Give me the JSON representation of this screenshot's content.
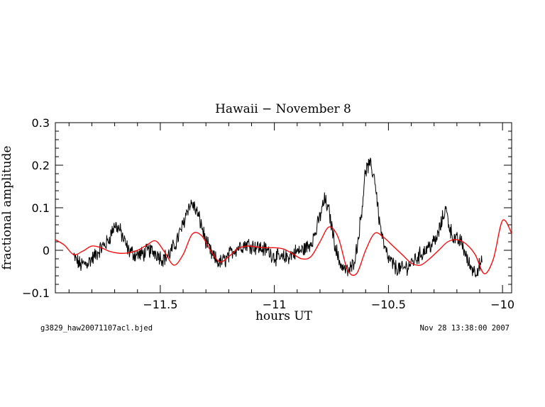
{
  "chart_data": {
    "type": "line",
    "title": "Hawaii − November 8",
    "xlabel": "hours UT",
    "ylabel": "fractional amplitude",
    "xlim": [
      -11.96,
      -9.96
    ],
    "ylim": [
      -0.1,
      0.3
    ],
    "x_ticks": [
      -11.5,
      -11,
      -10.5,
      -10
    ],
    "x_tick_labels": [
      "−11.5",
      "−11",
      "−10.5",
      "−10"
    ],
    "y_ticks": [
      -0.1,
      0,
      0.1,
      0.2,
      0.3
    ],
    "y_tick_labels": [
      "−0.1",
      "0",
      "0.1",
      "0.2",
      "0.3"
    ],
    "grid": false,
    "series": [
      {
        "color": "#000000",
        "style": "noisy-line",
        "x": [
          -11.88,
          -11.85,
          -11.82,
          -11.79,
          -11.76,
          -11.73,
          -11.7,
          -11.68,
          -11.66,
          -11.64,
          -11.61,
          -11.58,
          -11.55,
          -11.52,
          -11.49,
          -11.46,
          -11.43,
          -11.4,
          -11.38,
          -11.36,
          -11.34,
          -11.32,
          -11.3,
          -11.27,
          -11.24,
          -11.21,
          -11.18,
          -11.15,
          -11.12,
          -11.09,
          -11.06,
          -11.03,
          -11.0,
          -10.97,
          -10.94,
          -10.91,
          -10.88,
          -10.85,
          -10.82,
          -10.8,
          -10.78,
          -10.76,
          -10.74,
          -10.72,
          -10.7,
          -10.68,
          -10.66,
          -10.64,
          -10.62,
          -10.6,
          -10.58,
          -10.56,
          -10.54,
          -10.52,
          -10.5,
          -10.47,
          -10.44,
          -10.41,
          -10.38,
          -10.35,
          -10.32,
          -10.29,
          -10.27,
          -10.25,
          -10.23,
          -10.21,
          -10.18,
          -10.15,
          -10.12,
          -10.09
        ],
        "y": [
          -0.015,
          -0.035,
          -0.03,
          -0.015,
          0.005,
          0.02,
          0.06,
          0.05,
          0.025,
          0.0,
          -0.01,
          -0.01,
          0.0,
          -0.005,
          -0.02,
          -0.01,
          0.02,
          0.06,
          0.1,
          0.11,
          0.09,
          0.06,
          0.02,
          -0.015,
          -0.03,
          -0.02,
          0.0,
          0.01,
          0.015,
          0.01,
          0.005,
          0.0,
          -0.015,
          -0.02,
          -0.015,
          -0.005,
          0.0,
          0.01,
          0.04,
          0.08,
          0.12,
          0.09,
          0.03,
          -0.02,
          -0.04,
          -0.05,
          -0.04,
          0.0,
          0.08,
          0.19,
          0.2,
          0.17,
          0.07,
          0.01,
          -0.02,
          -0.04,
          -0.045,
          -0.035,
          -0.02,
          -0.005,
          0.01,
          0.025,
          0.06,
          0.1,
          0.05,
          0.025,
          0.02,
          -0.03,
          -0.05,
          -0.03
        ],
        "noise": 0.015
      },
      {
        "color": "#ff0000",
        "style": "smooth-line",
        "x": [
          -11.96,
          -11.92,
          -11.88,
          -11.84,
          -11.8,
          -11.76,
          -11.72,
          -11.68,
          -11.64,
          -11.6,
          -11.56,
          -11.52,
          -11.48,
          -11.44,
          -11.4,
          -11.36,
          -11.32,
          -11.28,
          -11.24,
          -11.2,
          -11.16,
          -11.12,
          -11.08,
          -11.04,
          -11.0,
          -10.96,
          -10.92,
          -10.88,
          -10.84,
          -10.8,
          -10.76,
          -10.72,
          -10.68,
          -10.64,
          -10.6,
          -10.56,
          -10.52,
          -10.48,
          -10.44,
          -10.4,
          -10.36,
          -10.32,
          -10.28,
          -10.24,
          -10.2,
          -10.16,
          -10.12,
          -10.08,
          -10.04,
          -10.0,
          -9.96
        ],
        "y": [
          0.025,
          0.012,
          -0.01,
          -0.002,
          0.01,
          0.006,
          -0.003,
          -0.007,
          -0.006,
          0.0,
          0.012,
          0.022,
          -0.005,
          -0.035,
          -0.01,
          0.038,
          0.035,
          0.0,
          -0.027,
          -0.015,
          0.004,
          0.01,
          0.008,
          0.006,
          0.006,
          0.003,
          -0.008,
          -0.02,
          -0.015,
          0.02,
          0.055,
          0.03,
          -0.045,
          -0.055,
          0.0,
          0.04,
          0.03,
          0.01,
          -0.01,
          -0.03,
          -0.035,
          -0.02,
          0.0,
          0.02,
          0.025,
          0.015,
          -0.01,
          -0.055,
          -0.02,
          0.07,
          0.04
        ]
      }
    ]
  },
  "footer": {
    "left": "g3829_haw20071107acl.bjed",
    "right": "Nov 28 13:38:00 2007"
  }
}
